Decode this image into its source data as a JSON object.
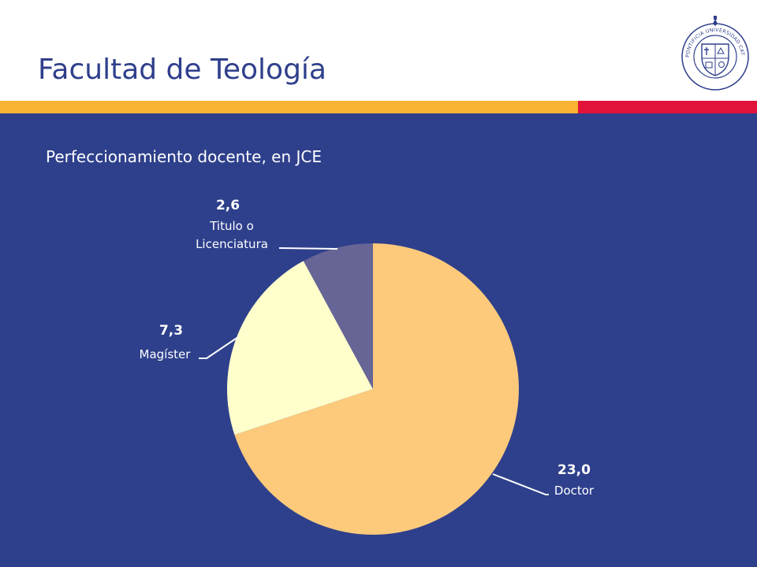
{
  "slide": {
    "title": "Facultad de Teología",
    "logo_text": "PONTIFICIA UNIVERSIDAD CATÓLICA DE CHILE"
  },
  "colors": {
    "background": "#2e3f8b",
    "title": "#2f3f8c",
    "bar_yellow": "#f9b234",
    "bar_red": "#e2133a"
  },
  "chart_data": {
    "type": "pie",
    "title": "Perfeccionamiento docente, en JCE",
    "start_angle_deg": 0,
    "direction": "clockwise",
    "slices": [
      {
        "label": "Doctor",
        "value": 23.0,
        "display": "23,0",
        "color": "#fdc97a"
      },
      {
        "label": "Magíster",
        "value": 7.3,
        "display": "7,3",
        "color": "#ffffcc"
      },
      {
        "label": "Titulo o Licenciatura",
        "label_lines": [
          "Titulo o",
          "Licenciatura"
        ],
        "value": 2.6,
        "display": "2,6",
        "color": "#676596"
      }
    ]
  }
}
